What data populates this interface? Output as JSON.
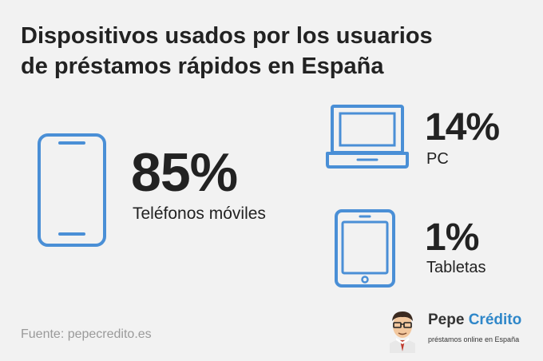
{
  "title_lines": [
    "Dispositivos usados por los usuarios",
    "de préstamos rápidos en España"
  ],
  "chart_data": {
    "type": "pictograph",
    "title": "Dispositivos usados por los usuarios de préstamos rápidos en España",
    "unit": "%",
    "items": [
      {
        "label": "Teléfonos móviles",
        "value": 85,
        "display": "85%",
        "icon": "smartphone-icon"
      },
      {
        "label": "PC",
        "value": 14,
        "display": "14%",
        "icon": "laptop-icon"
      },
      {
        "label": "Tabletas",
        "value": 1,
        "display": "1%",
        "icon": "tablet-icon"
      }
    ]
  },
  "source": "Fuente: pepecredito.es",
  "brand": {
    "name_part1": "Pepe",
    "name_part2": "Crédito",
    "tagline": "préstamos online en España"
  },
  "colors": {
    "background": "#f2f2f2",
    "icon_stroke": "#4a8fd6",
    "text": "#222222",
    "source_text": "#9a9a9a",
    "brand_accent": "#2f87c9"
  }
}
